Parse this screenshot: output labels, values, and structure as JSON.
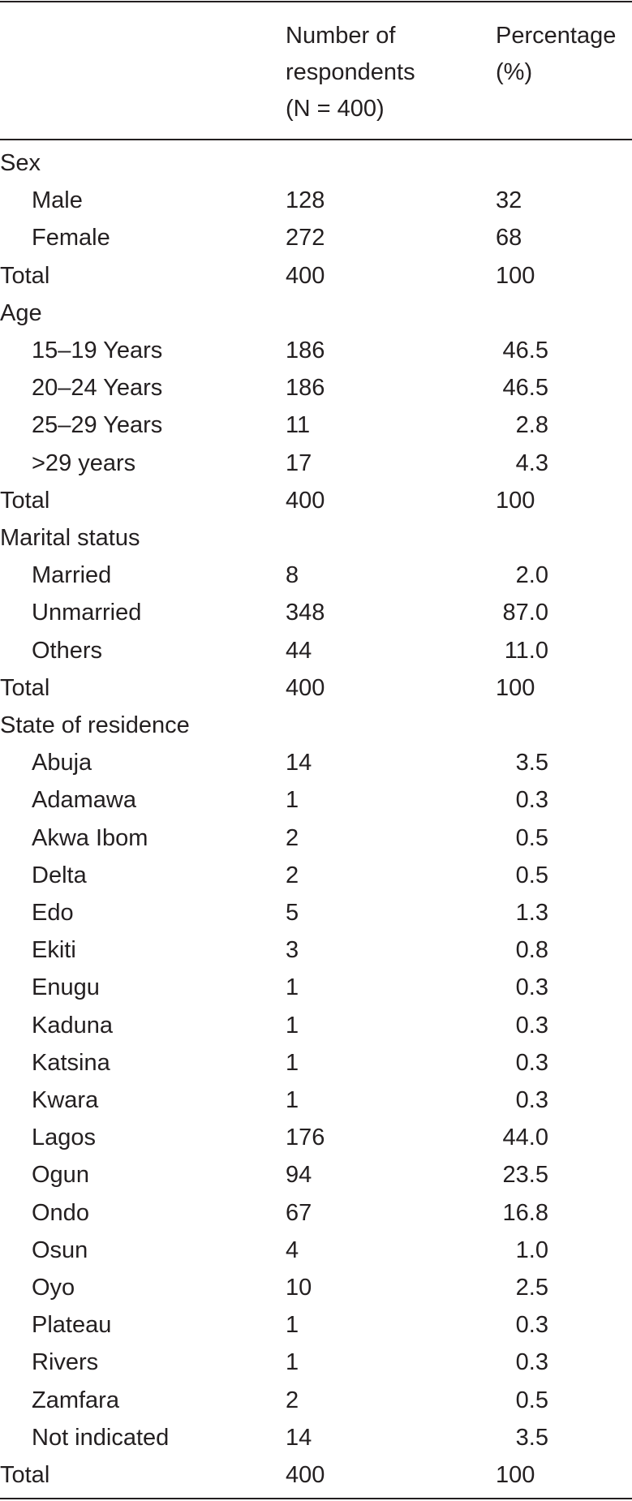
{
  "table": {
    "header": [
      [],
      [
        "Number of",
        "respondents",
        "(N = 400)"
      ],
      [
        "Percentage",
        "(%)"
      ]
    ],
    "sections": [
      {
        "title": "Sex",
        "rows": [
          [
            "Male",
            "128",
            "32"
          ],
          [
            "Female",
            "272",
            "68"
          ]
        ],
        "total": [
          "Total",
          "400",
          "100"
        ]
      },
      {
        "title": "Age",
        "rows": [
          [
            "15–19 Years",
            "186",
            "46.5"
          ],
          [
            "20–24 Years",
            "186",
            "46.5"
          ],
          [
            "25–29 Years",
            "11",
            "2.8"
          ],
          [
            ">29 years",
            "17",
            "4.3"
          ]
        ],
        "total": [
          "Total",
          "400",
          "100"
        ]
      },
      {
        "title": "Marital status",
        "rows": [
          [
            "Married",
            "8",
            "2.0"
          ],
          [
            "Unmarried",
            "348",
            "87.0"
          ],
          [
            "Others",
            "44",
            "11.0"
          ]
        ],
        "total": [
          "Total",
          "400",
          "100"
        ]
      },
      {
        "title": "State of residence",
        "rows": [
          [
            "Abuja",
            "14",
            "3.5"
          ],
          [
            "Adamawa",
            "1",
            "0.3"
          ],
          [
            "Akwa Ibom",
            "2",
            "0.5"
          ],
          [
            "Delta",
            "2",
            "0.5"
          ],
          [
            "Edo",
            "5",
            "1.3"
          ],
          [
            "Ekiti",
            "3",
            "0.8"
          ],
          [
            "Enugu",
            "1",
            "0.3"
          ],
          [
            "Kaduna",
            "1",
            "0.3"
          ],
          [
            "Katsina",
            "1",
            "0.3"
          ],
          [
            "Kwara",
            "1",
            "0.3"
          ],
          [
            "Lagos",
            "176",
            "44.0"
          ],
          [
            "Ogun",
            "94",
            "23.5"
          ],
          [
            "Ondo",
            "67",
            "16.8"
          ],
          [
            "Osun",
            "4",
            "1.0"
          ],
          [
            "Oyo",
            "10",
            "2.5"
          ],
          [
            "Plateau",
            "1",
            "0.3"
          ],
          [
            "Rivers",
            "1",
            "0.3"
          ],
          [
            "Zamfara",
            "2",
            "0.5"
          ],
          [
            "Not indicated",
            "14",
            "3.5"
          ]
        ],
        "total": [
          "Total",
          "400",
          "100"
        ]
      }
    ]
  }
}
